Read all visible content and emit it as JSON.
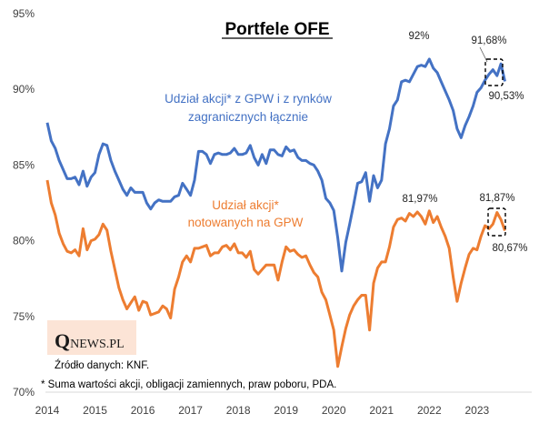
{
  "chart_data": {
    "type": "line",
    "title": "Portfele OFE",
    "xlabel": "",
    "ylabel": "",
    "ylim": [
      70,
      95
    ],
    "xlim": [
      2014,
      2023.85
    ],
    "grid": false,
    "y_ticks": [
      "70%",
      "75%",
      "80%",
      "85%",
      "90%",
      "95%"
    ],
    "x_ticks": [
      "2014",
      "2015",
      "2016",
      "2017",
      "2018",
      "2019",
      "2020",
      "2021",
      "2022",
      "2023"
    ],
    "series": [
      {
        "name": "Udział akcji* z GPW i z rynków zagranicznych łącznie",
        "label_lines": [
          "Udział akcji* z GPW i z rynków",
          "zagranicznych łącznie"
        ],
        "color": "#4472C4",
        "x": [
          2014.0,
          2014.083,
          2014.167,
          2014.25,
          2014.333,
          2014.417,
          2014.5,
          2014.583,
          2014.667,
          2014.75,
          2014.833,
          2014.917,
          2015.0,
          2015.083,
          2015.167,
          2015.25,
          2015.333,
          2015.417,
          2015.5,
          2015.583,
          2015.667,
          2015.75,
          2015.833,
          2015.917,
          2016.0,
          2016.083,
          2016.167,
          2016.25,
          2016.333,
          2016.417,
          2016.5,
          2016.583,
          2016.667,
          2016.75,
          2016.833,
          2016.917,
          2017.0,
          2017.083,
          2017.167,
          2017.25,
          2017.333,
          2017.417,
          2017.5,
          2017.583,
          2017.667,
          2017.75,
          2017.833,
          2017.917,
          2018.0,
          2018.083,
          2018.167,
          2018.25,
          2018.333,
          2018.417,
          2018.5,
          2018.583,
          2018.667,
          2018.75,
          2018.833,
          2018.917,
          2019.0,
          2019.083,
          2019.167,
          2019.25,
          2019.333,
          2019.417,
          2019.5,
          2019.583,
          2019.667,
          2019.75,
          2019.833,
          2019.917,
          2020.0,
          2020.083,
          2020.167,
          2020.25,
          2020.333,
          2020.417,
          2020.5,
          2020.583,
          2020.667,
          2020.75,
          2020.833,
          2020.917,
          2021.0,
          2021.083,
          2021.167,
          2021.25,
          2021.333,
          2021.417,
          2021.5,
          2021.583,
          2021.667,
          2021.75,
          2021.833,
          2021.917,
          2022.0,
          2022.083,
          2022.167,
          2022.25,
          2022.333,
          2022.417,
          2022.5,
          2022.583,
          2022.667,
          2022.75,
          2022.833,
          2022.917,
          2023.0,
          2023.083,
          2023.167,
          2023.25,
          2023.333,
          2023.417,
          2023.5,
          2023.583
        ],
        "values": [
          87.8,
          86.6,
          86.1,
          85.3,
          84.7,
          84.1,
          84.1,
          84.2,
          83.7,
          84.6,
          83.6,
          84.2,
          84.5,
          85.7,
          86.4,
          86.3,
          85.3,
          84.6,
          84.0,
          83.4,
          83.0,
          83.5,
          83.2,
          83.2,
          83.2,
          82.5,
          82.1,
          82.5,
          82.7,
          82.6,
          82.6,
          82.6,
          82.9,
          83.0,
          83.8,
          83.4,
          83.0,
          84.0,
          85.9,
          85.9,
          85.7,
          85.1,
          85.7,
          85.8,
          85.7,
          85.7,
          85.8,
          86.1,
          85.7,
          85.7,
          85.8,
          86.3,
          85.5,
          85.0,
          85.7,
          85.1,
          86.0,
          86.0,
          85.7,
          85.6,
          86.2,
          85.9,
          86.0,
          85.5,
          85.3,
          85.3,
          85.1,
          85.0,
          84.6,
          84.0,
          82.8,
          82.5,
          82.0,
          80.2,
          78.0,
          79.9,
          81.1,
          82.4,
          83.8,
          83.9,
          84.5,
          82.6,
          84.3,
          83.5,
          84.0,
          86.4,
          87.4,
          88.9,
          89.3,
          90.5,
          90.6,
          90.5,
          91.0,
          91.5,
          91.6,
          91.5,
          92.0,
          91.4,
          91.1,
          90.5,
          89.9,
          89.3,
          88.6,
          87.4,
          86.8,
          87.6,
          88.2,
          88.9,
          89.8,
          90.1,
          90.6,
          91.0,
          91.3,
          90.9,
          91.68,
          90.53
        ]
      },
      {
        "name": "Udział akcji* notowanych na GPW",
        "label_lines": [
          "Udział akcji*",
          "notowanych  na GPW"
        ],
        "color": "#ED7D31",
        "x": [
          2014.0,
          2014.083,
          2014.167,
          2014.25,
          2014.333,
          2014.417,
          2014.5,
          2014.583,
          2014.667,
          2014.75,
          2014.833,
          2014.917,
          2015.0,
          2015.083,
          2015.167,
          2015.25,
          2015.333,
          2015.417,
          2015.5,
          2015.583,
          2015.667,
          2015.75,
          2015.833,
          2015.917,
          2016.0,
          2016.083,
          2016.167,
          2016.25,
          2016.333,
          2016.417,
          2016.5,
          2016.583,
          2016.667,
          2016.75,
          2016.833,
          2016.917,
          2017.0,
          2017.083,
          2017.167,
          2017.25,
          2017.333,
          2017.417,
          2017.5,
          2017.583,
          2017.667,
          2017.75,
          2017.833,
          2017.917,
          2018.0,
          2018.083,
          2018.167,
          2018.25,
          2018.333,
          2018.417,
          2018.5,
          2018.583,
          2018.667,
          2018.75,
          2018.833,
          2018.917,
          2019.0,
          2019.083,
          2019.167,
          2019.25,
          2019.333,
          2019.417,
          2019.5,
          2019.583,
          2019.667,
          2019.75,
          2019.833,
          2019.917,
          2020.0,
          2020.083,
          2020.167,
          2020.25,
          2020.333,
          2020.417,
          2020.5,
          2020.583,
          2020.667,
          2020.75,
          2020.833,
          2020.917,
          2021.0,
          2021.083,
          2021.167,
          2021.25,
          2021.333,
          2021.417,
          2021.5,
          2021.583,
          2021.667,
          2021.75,
          2021.833,
          2021.917,
          2022.0,
          2022.083,
          2022.167,
          2022.25,
          2022.333,
          2022.417,
          2022.5,
          2022.583,
          2022.667,
          2022.75,
          2022.833,
          2022.917,
          2023.0,
          2023.083,
          2023.167,
          2023.25,
          2023.333,
          2023.417,
          2023.5,
          2023.583
        ],
        "values": [
          84.0,
          82.5,
          81.7,
          80.5,
          79.8,
          79.3,
          79.2,
          79.4,
          79.0,
          80.8,
          79.4,
          80.0,
          80.1,
          80.4,
          81.1,
          80.7,
          79.3,
          78.1,
          76.9,
          76.1,
          75.5,
          75.9,
          76.3,
          75.4,
          76.0,
          75.9,
          75.1,
          75.2,
          75.3,
          75.7,
          75.5,
          74.9,
          76.8,
          77.6,
          78.6,
          79.0,
          78.6,
          79.5,
          79.5,
          79.6,
          79.7,
          79.0,
          79.2,
          79.2,
          79.6,
          79.7,
          79.4,
          79.8,
          79.2,
          79.2,
          78.9,
          79.3,
          78.1,
          77.8,
          78.1,
          78.4,
          78.4,
          78.4,
          77.4,
          78.6,
          79.6,
          79.3,
          79.4,
          79.1,
          78.9,
          79.0,
          78.4,
          77.9,
          77.6,
          76.6,
          76.1,
          75.1,
          74.1,
          71.7,
          73.0,
          74.2,
          75.1,
          75.7,
          76.1,
          76.4,
          76.4,
          74.1,
          77.2,
          78.2,
          78.6,
          78.6,
          79.6,
          80.9,
          81.4,
          81.5,
          81.3,
          81.8,
          81.6,
          81.9,
          81.6,
          81.1,
          81.97,
          81.2,
          81.6,
          80.9,
          80.3,
          79.5,
          77.6,
          76.0,
          77.2,
          78.2,
          79.1,
          79.5,
          79.4,
          80.3,
          81.0,
          80.8,
          81.1,
          81.87,
          81.4,
          80.67
        ]
      }
    ],
    "annotations": [
      {
        "text": "92%",
        "x": 2022.0,
        "y": 92.0
      },
      {
        "text": "91,68%",
        "x": 2023.5,
        "y": 91.68
      },
      {
        "text": "90,53%",
        "x": 2023.583,
        "y": 90.53
      },
      {
        "text": "81,97%",
        "x": 2022.0,
        "y": 81.97
      },
      {
        "text": "81,87%",
        "x": 2023.417,
        "y": 81.87
      },
      {
        "text": "80,67%",
        "x": 2023.583,
        "y": 80.67
      }
    ]
  },
  "logo": {
    "q": "Q",
    "text": "NEWS.PL"
  },
  "source_note": "Źródło danych: KNF.",
  "footnote": "* Suma wartości akcji, obligacji zamiennych, praw poboru, PDA."
}
